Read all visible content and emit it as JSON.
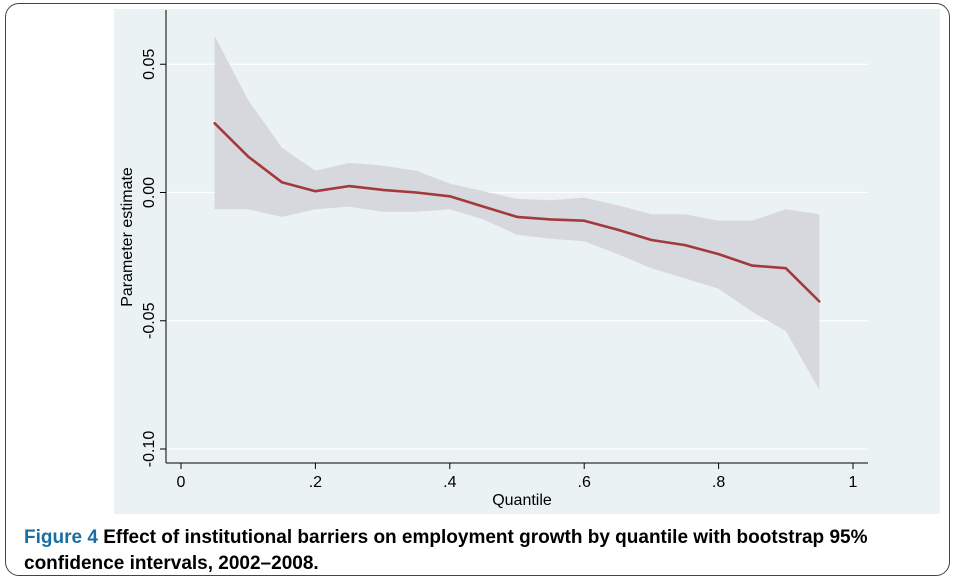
{
  "caption": {
    "label": "Figure 4",
    "text": "Effect of institutional barriers on employment growth by quantile with bootstrap 95% confidence intervals, 2002–2008."
  },
  "colors": {
    "background": "#eaf2f3",
    "band": "#d6d6dc",
    "line": "#a23a3c",
    "grid": "#ffffff",
    "axis": "#000000"
  },
  "chart_data": {
    "type": "line",
    "title": "",
    "xlabel": "Quantile",
    "ylabel": "Parameter estimate",
    "xlim": [
      0,
      1
    ],
    "ylim": [
      -0.1,
      0.06
    ],
    "xticks": [
      0,
      0.2,
      0.4,
      0.6,
      0.8,
      1
    ],
    "xtick_labels": [
      "0",
      ".2",
      ".4",
      ".6",
      ".8",
      "1"
    ],
    "yticks": [
      -0.1,
      -0.05,
      0,
      0.05
    ],
    "ytick_labels": [
      "-0.10",
      "-0.05",
      "0.00",
      "0.05"
    ],
    "grid": "horizontal",
    "x": [
      0.05,
      0.1,
      0.15,
      0.2,
      0.25,
      0.3,
      0.35,
      0.4,
      0.45,
      0.5,
      0.55,
      0.6,
      0.65,
      0.7,
      0.75,
      0.8,
      0.85,
      0.9,
      0.95
    ],
    "series": [
      {
        "values": [
          0.027,
          0.014,
          0.004,
          0.0005,
          0.0025,
          0.001,
          0.0,
          -0.0015,
          -0.0055,
          -0.0095,
          -0.0105,
          -0.011,
          -0.0145,
          -0.0185,
          -0.0205,
          -0.024,
          -0.0285,
          -0.0295,
          -0.0425
        ]
      }
    ],
    "ci_lower": [
      -0.0065,
      -0.0065,
      -0.0095,
      -0.0065,
      -0.0055,
      -0.0075,
      -0.0075,
      -0.0065,
      -0.0105,
      -0.0165,
      -0.018,
      -0.019,
      -0.024,
      -0.0295,
      -0.0335,
      -0.0375,
      -0.0465,
      -0.054,
      -0.077
    ],
    "ci_upper": [
      0.061,
      0.036,
      0.0175,
      0.0085,
      0.0115,
      0.0105,
      0.0085,
      0.0035,
      0.0005,
      -0.0025,
      -0.003,
      -0.002,
      -0.005,
      -0.0085,
      -0.0085,
      -0.011,
      -0.011,
      -0.0065,
      -0.0085
    ]
  }
}
